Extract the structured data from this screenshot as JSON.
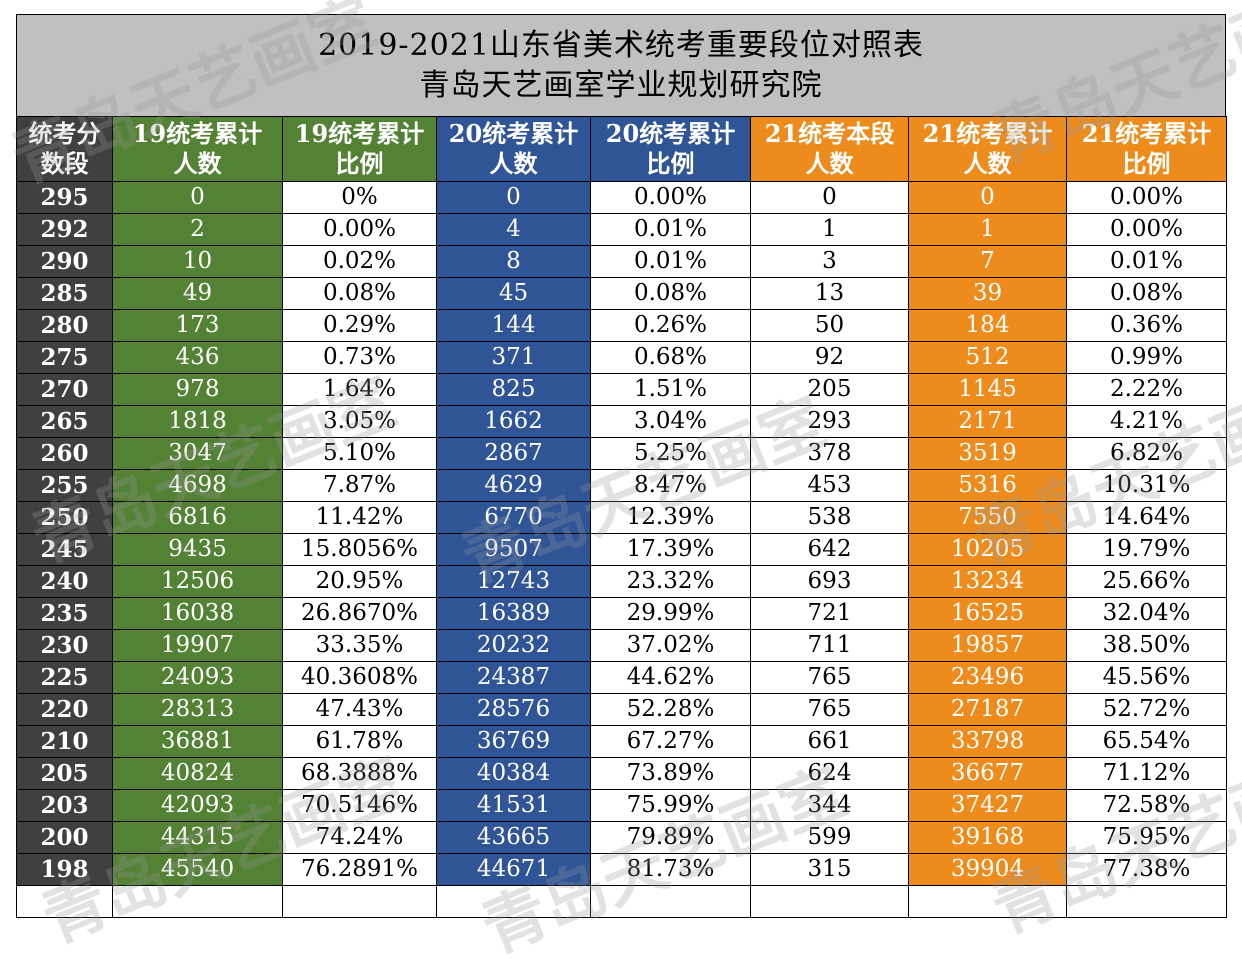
{
  "title": {
    "line1": "2019-2021山东省美术统考重要段位对照表",
    "line2": "青岛天艺画室学业规划研究院"
  },
  "headers": [
    {
      "line1": "统考分",
      "line2": "数段"
    },
    {
      "line1": "19统考累计",
      "line2": "人数"
    },
    {
      "line1": "19统考累计",
      "line2": "比例"
    },
    {
      "line1": "20统考累计",
      "line2": "人数"
    },
    {
      "line1": "20统考累计",
      "line2": "比例"
    },
    {
      "line1": "21统考本段",
      "line2": "人数"
    },
    {
      "line1": "21统考累计",
      "line2": "人数"
    },
    {
      "line1": "21统考累计",
      "line2": "比例"
    }
  ],
  "rows": [
    [
      "295",
      "0",
      "0%",
      "0",
      "0.00%",
      "0",
      "0",
      "0.00%"
    ],
    [
      "292",
      "2",
      "0.00%",
      "4",
      "0.01%",
      "1",
      "1",
      "0.00%"
    ],
    [
      "290",
      "10",
      "0.02%",
      "8",
      "0.01%",
      "3",
      "7",
      "0.01%"
    ],
    [
      "285",
      "49",
      "0.08%",
      "45",
      "0.08%",
      "13",
      "39",
      "0.08%"
    ],
    [
      "280",
      "173",
      "0.29%",
      "144",
      "0.26%",
      "50",
      "184",
      "0.36%"
    ],
    [
      "275",
      "436",
      "0.73%",
      "371",
      "0.68%",
      "92",
      "512",
      "0.99%"
    ],
    [
      "270",
      "978",
      "1.64%",
      "825",
      "1.51%",
      "205",
      "1145",
      "2.22%"
    ],
    [
      "265",
      "1818",
      "3.05%",
      "1662",
      "3.04%",
      "293",
      "2171",
      "4.21%"
    ],
    [
      "260",
      "3047",
      "5.10%",
      "2867",
      "5.25%",
      "378",
      "3519",
      "6.82%"
    ],
    [
      "255",
      "4698",
      "7.87%",
      "4629",
      "8.47%",
      "453",
      "5316",
      "10.31%"
    ],
    [
      "250",
      "6816",
      "11.42%",
      "6770",
      "12.39%",
      "538",
      "7550",
      "14.64%"
    ],
    [
      "245",
      "9435",
      "15.8056%",
      "9507",
      "17.39%",
      "642",
      "10205",
      "19.79%"
    ],
    [
      "240",
      "12506",
      "20.95%",
      "12743",
      "23.32%",
      "693",
      "13234",
      "25.66%"
    ],
    [
      "235",
      "16038",
      "26.8670%",
      "16389",
      "29.99%",
      "721",
      "16525",
      "32.04%"
    ],
    [
      "230",
      "19907",
      "33.35%",
      "20232",
      "37.02%",
      "711",
      "19857",
      "38.50%"
    ],
    [
      "225",
      "24093",
      "40.3608%",
      "24387",
      "44.62%",
      "765",
      "23496",
      "45.56%"
    ],
    [
      "220",
      "28313",
      "47.43%",
      "28576",
      "52.28%",
      "765",
      "27187",
      "52.72%"
    ],
    [
      "210",
      "36881",
      "61.78%",
      "36769",
      "67.27%",
      "661",
      "33798",
      "65.54%"
    ],
    [
      "205",
      "40824",
      "68.3888%",
      "40384",
      "73.89%",
      "624",
      "36677",
      "71.12%"
    ],
    [
      "203",
      "42093",
      "70.5146%",
      "41531",
      "75.99%",
      "344",
      "37427",
      "72.58%"
    ],
    [
      "200",
      "44315",
      "74.24%",
      "43665",
      "79.89%",
      "599",
      "39168",
      "75.95%"
    ],
    [
      "198",
      "45540",
      "76.2891%",
      "44671",
      "81.73%",
      "315",
      "39904",
      "77.38%"
    ]
  ],
  "watermark": "青岛天艺画室",
  "colors": {
    "title_bg": "#c0c0c0",
    "score_col": "#404040",
    "y2019": "#548235",
    "y2020": "#2f5597",
    "y2021": "#ed8c1c"
  }
}
